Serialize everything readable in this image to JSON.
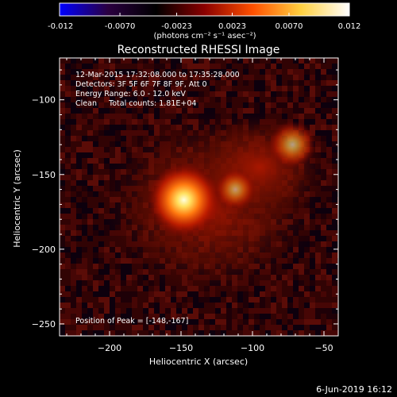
{
  "colorbar": {
    "ticks": [
      "-0.012",
      "-0.0070",
      "-0.0023",
      "0.0023",
      "0.0070",
      "0.012"
    ],
    "units_label": "(photons cm⁻² s⁻¹ asec⁻²)",
    "colors": [
      "#0000ff",
      "#2a0040",
      "#000000",
      "#8a0000",
      "#ff5000",
      "#ffd040",
      "#ffffff"
    ]
  },
  "chart_data": {
    "type": "heatmap",
    "title": "Reconstructed RHESSI Image",
    "xlabel": "Heliocentric X (arcsec)",
    "ylabel": "Heliocentric Y (arcsec)",
    "xlim": [
      -235,
      -40
    ],
    "ylim": [
      -258,
      -72
    ],
    "xticks": [
      -200,
      -150,
      -100,
      -50
    ],
    "yticks": [
      -100,
      -150,
      -200,
      -250
    ],
    "value_range": [
      -0.012,
      0.012
    ],
    "sources": [
      {
        "x": -148,
        "y": -167,
        "intensity": 1.0
      },
      {
        "x": -112,
        "y": -160,
        "intensity": 0.55
      },
      {
        "x": -72,
        "y": -130,
        "intensity": 0.6
      }
    ],
    "annotations": [
      "12-Mar-2015 17:32:08.000 to 17:35:28.000",
      "Detectors: 3F 5F 6F 7F 8F 9F, Att 0",
      "Energy Range: 6.0 - 12.0 keV",
      "Clean     Total counts: 1.81E+04"
    ],
    "peak_label": "Position of Peak = [-148,-167]"
  },
  "footer": {
    "timestamp": "6-Jun-2019 16:12"
  }
}
